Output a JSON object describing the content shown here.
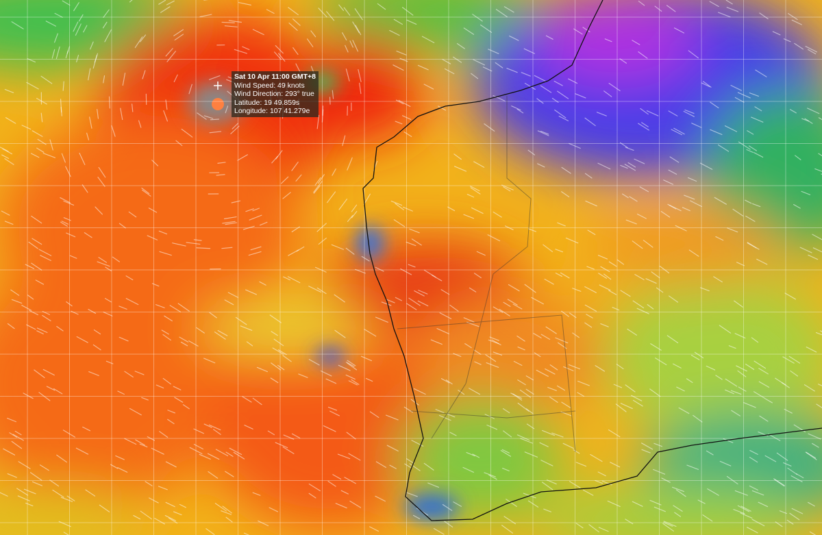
{
  "tooltip": {
    "time": "Sat 10 Apr 11:00 GMT+8",
    "wind_speed": "Wind Speed: 49 knots",
    "wind_direction": "Wind Direction: 293° true",
    "latitude": "Latitude: 19 49.859s",
    "longitude": "Longitude: 107 41.279e"
  }
}
